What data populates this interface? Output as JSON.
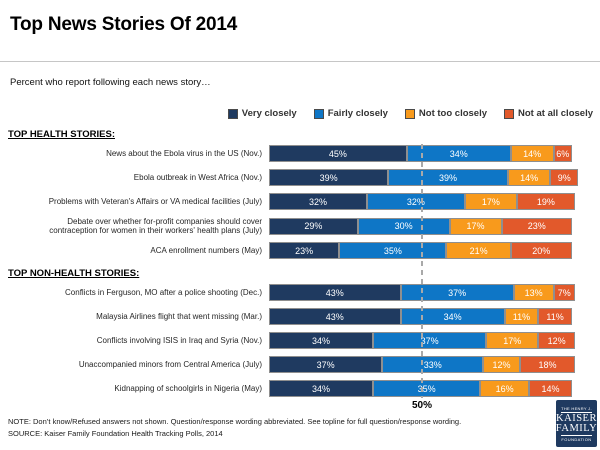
{
  "title": "Top News Stories Of 2014",
  "subtitle": "Percent who report following each news story…",
  "chart_data": {
    "type": "bar",
    "stacked": true,
    "orientation": "horizontal",
    "unit": "%",
    "xlim": [
      0,
      100
    ],
    "grid": false,
    "legend_position": "top-right",
    "reference_line": {
      "value": 50,
      "label": "50%"
    },
    "series_names": [
      "Very closely",
      "Fairly closely",
      "Not too closely",
      "Not at all closely"
    ],
    "series_colors": [
      "#1f3a60",
      "#0e76c6",
      "#f89a1c",
      "#e2592b"
    ],
    "sections": [
      {
        "title": "TOP HEALTH STORIES:",
        "rows": [
          {
            "label": "News about the Ebola virus in the US (Nov.)",
            "values": [
              45,
              34,
              14,
              6
            ]
          },
          {
            "label": "Ebola outbreak in West Africa (Nov.)",
            "values": [
              39,
              39,
              14,
              9
            ]
          },
          {
            "label": "Problems with Veteran's Affairs or VA medical facilities (July)",
            "values": [
              32,
              32,
              17,
              19
            ]
          },
          {
            "label": "Debate over whether for-profit companies should cover\ncontraception for women in their workers' health plans (July)",
            "values": [
              29,
              30,
              17,
              23
            ]
          },
          {
            "label": "ACA enrollment numbers (May)",
            "values": [
              23,
              35,
              21,
              20
            ]
          }
        ]
      },
      {
        "title": "TOP NON-HEALTH STORIES:",
        "rows": [
          {
            "label": "Conflicts in Ferguson, MO after a police shooting (Dec.)",
            "values": [
              43,
              37,
              13,
              7
            ]
          },
          {
            "label": "Malaysia Airlines flight that went missing (Mar.)",
            "values": [
              43,
              34,
              11,
              11
            ]
          },
          {
            "label": "Conflicts involving ISIS in Iraq and Syria (Nov.)",
            "values": [
              34,
              37,
              17,
              12
            ]
          },
          {
            "label": "Unaccompanied minors from Central America (July)",
            "values": [
              37,
              33,
              12,
              18
            ]
          },
          {
            "label": "Kidnapping of schoolgirls in Nigeria (May)",
            "values": [
              34,
              35,
              16,
              14
            ]
          }
        ]
      }
    ]
  },
  "footer": {
    "note": "NOTE: Don’t know/Refused answers not shown. Question/response wording abbreviated. See topline for full question/response wording.",
    "source": "SOURCE: Kaiser Family Foundation Health Tracking Polls, 2014"
  },
  "logo": {
    "bg": "#1f3a60",
    "top": "THE HENRY J.",
    "name_line1": "KAISER",
    "name_line2": "FAMILY",
    "bottom": "FOUNDATION"
  }
}
